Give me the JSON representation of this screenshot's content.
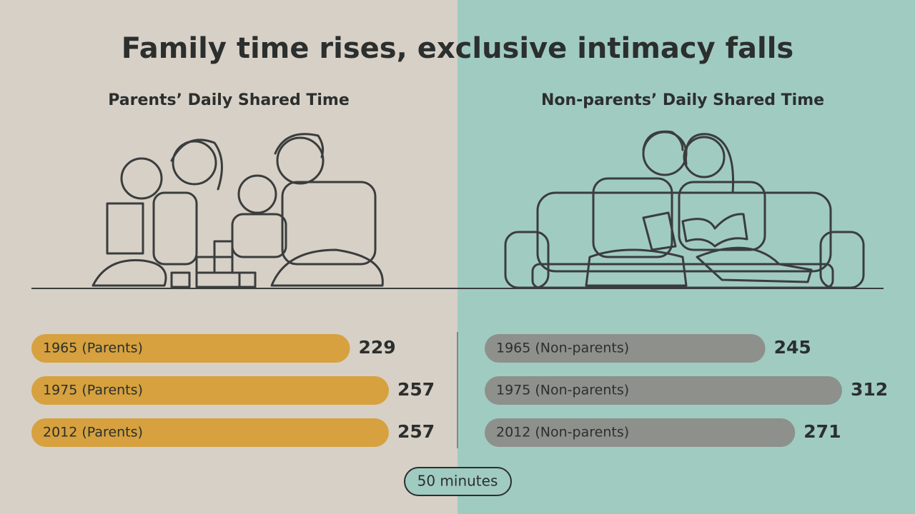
{
  "title": "Family time rises, exclusive intimacy falls",
  "scale_label": "50 minutes",
  "chart_data": [
    {
      "type": "bar",
      "title": "Parents’ Daily Shared Time",
      "categories": [
        "1965 (Parents)",
        "1975 (Parents)",
        "2012 (Parents)"
      ],
      "values": [
        229,
        257,
        257
      ],
      "color": "#d6a13e"
    },
    {
      "type": "bar",
      "title": "Non-parents’ Daily Shared Time",
      "categories": [
        "1965 (Non-parents)",
        "1975 (Non-parents)",
        "2012 (Non-parents)"
      ],
      "values": [
        245,
        312,
        271
      ],
      "color": "#8e908c"
    }
  ]
}
